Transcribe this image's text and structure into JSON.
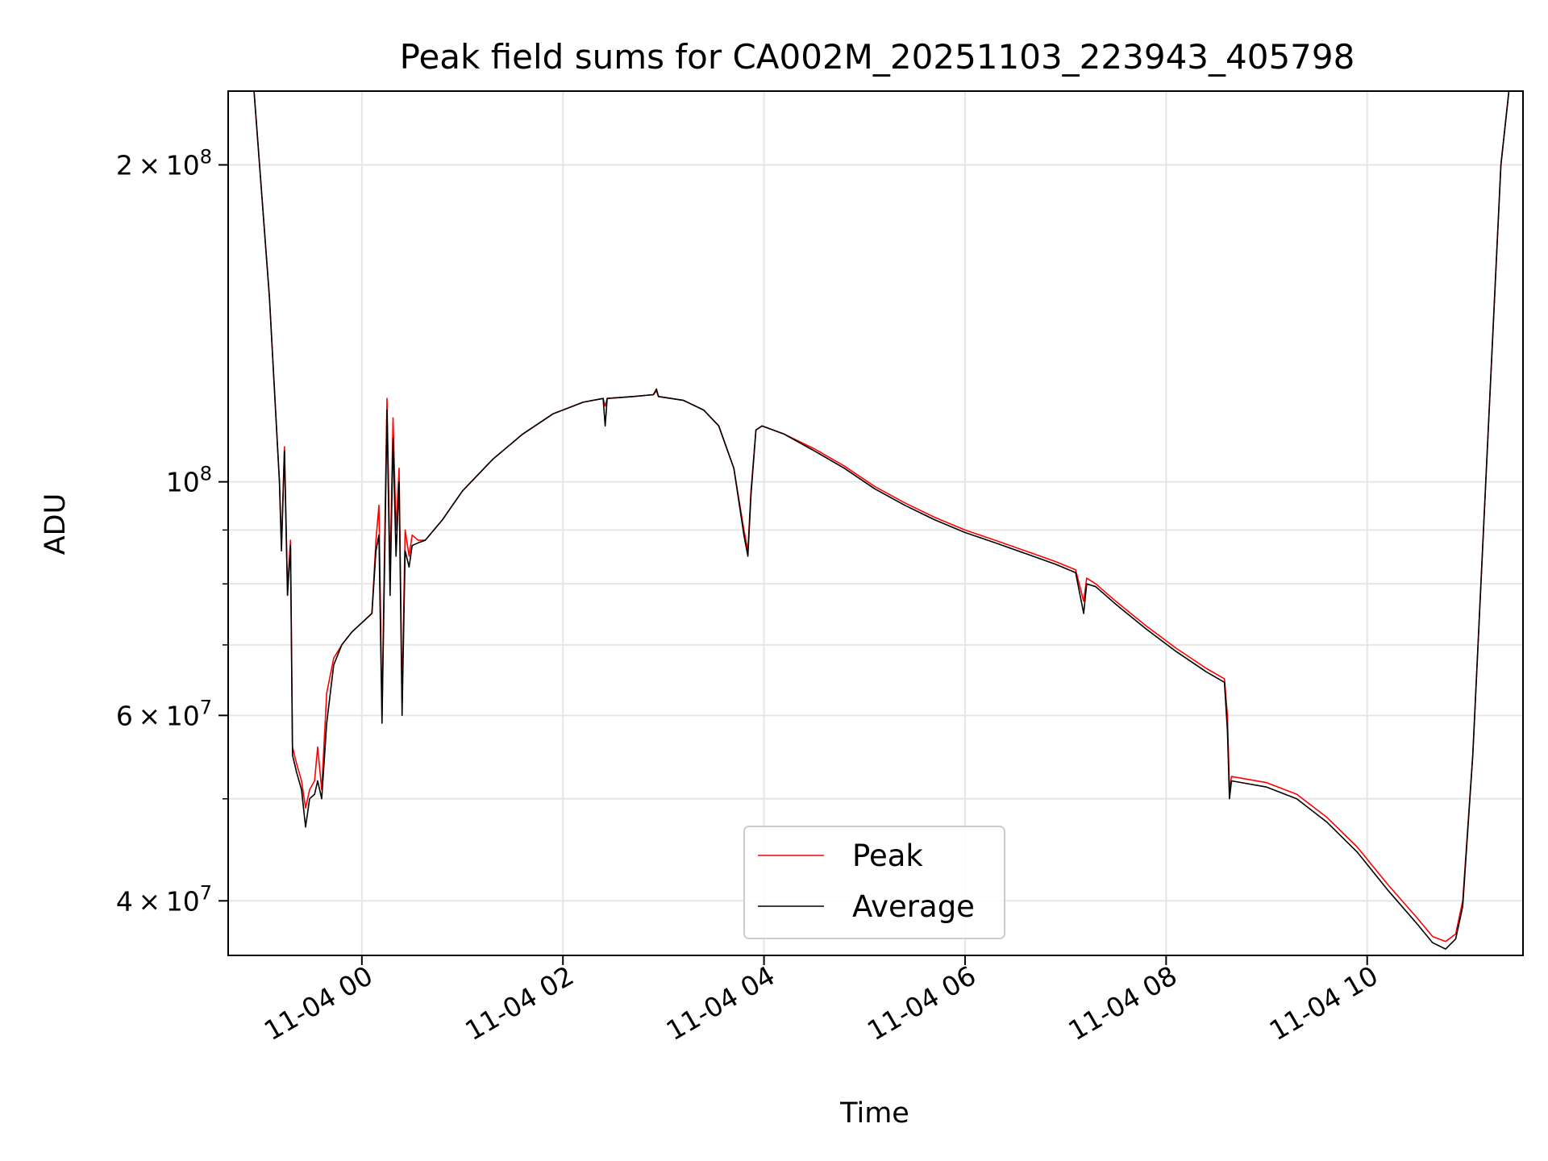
{
  "chart_data": {
    "type": "line",
    "title": "Peak field sums for CA002M_20251103_223943_405798",
    "xlabel": "Time",
    "ylabel": "ADU",
    "xlim_hours": [
      -1.33,
      11.55
    ],
    "ylim": [
      35500000,
      235000000
    ],
    "yscale": "log",
    "grid": true,
    "legend_position": "lower-center",
    "x_ticks": [
      {
        "hour": 0,
        "label": "11-04 00"
      },
      {
        "hour": 2,
        "label": "11-04 02"
      },
      {
        "hour": 4,
        "label": "11-04 04"
      },
      {
        "hour": 6,
        "label": "11-04 06"
      },
      {
        "hour": 8,
        "label": "11-04 08"
      },
      {
        "hour": 10,
        "label": "11-04 10"
      }
    ],
    "y_major_ticks": [
      {
        "value": 40000000,
        "mantissa": "4",
        "exponent": "7"
      },
      {
        "value": 60000000,
        "mantissa": "6",
        "exponent": "7"
      },
      {
        "value": 100000000,
        "mantissa": "",
        "exponent": "8"
      },
      {
        "value": 200000000,
        "mantissa": "2",
        "exponent": "8"
      }
    ],
    "y_minor_grid": [
      50000000,
      70000000,
      80000000,
      90000000
    ],
    "tick_prefix_base": "10",
    "tick_times": "×",
    "series": [
      {
        "name": "Peak",
        "color": "#ff0000",
        "points": [
          [
            -1.33,
            240000000
          ],
          [
            -1.08,
            240000000
          ],
          [
            -0.92,
            150000000
          ],
          [
            -0.82,
            100000000
          ],
          [
            -0.8,
            87000000
          ],
          [
            -0.77,
            108000000
          ],
          [
            -0.74,
            79000000
          ],
          [
            -0.71,
            88000000
          ],
          [
            -0.69,
            56000000
          ],
          [
            -0.65,
            54000000
          ],
          [
            -0.6,
            52000000
          ],
          [
            -0.56,
            49000000
          ],
          [
            -0.52,
            51000000
          ],
          [
            -0.47,
            52000000
          ],
          [
            -0.44,
            56000000
          ],
          [
            -0.4,
            51000000
          ],
          [
            -0.35,
            63000000
          ],
          [
            -0.28,
            68000000
          ],
          [
            -0.2,
            70000000
          ],
          [
            -0.1,
            72000000
          ],
          [
            0.1,
            75000000
          ],
          [
            0.14,
            88000000
          ],
          [
            0.17,
            95000000
          ],
          [
            0.2,
            60000000
          ],
          [
            0.23,
            92000000
          ],
          [
            0.25,
            120000000
          ],
          [
            0.28,
            82000000
          ],
          [
            0.31,
            115000000
          ],
          [
            0.34,
            90000000
          ],
          [
            0.37,
            103000000
          ],
          [
            0.4,
            62000000
          ],
          [
            0.43,
            90000000
          ],
          [
            0.47,
            85000000
          ],
          [
            0.5,
            89000000
          ],
          [
            0.56,
            88000000
          ],
          [
            0.63,
            88000000
          ],
          [
            0.8,
            92000000
          ],
          [
            1.0,
            98000000
          ],
          [
            1.3,
            105000000
          ],
          [
            1.6,
            111000000
          ],
          [
            1.9,
            116000000
          ],
          [
            2.2,
            119000000
          ],
          [
            2.4,
            120000000
          ],
          [
            2.42,
            118000000
          ],
          [
            2.44,
            120000000
          ],
          [
            2.7,
            120500000
          ],
          [
            2.9,
            121000000
          ],
          [
            2.93,
            122000000
          ],
          [
            2.95,
            120500000
          ],
          [
            3.2,
            119500000
          ],
          [
            3.4,
            117000000
          ],
          [
            3.55,
            113000000
          ],
          [
            3.7,
            103000000
          ],
          [
            3.8,
            90000000
          ],
          [
            3.84,
            86000000
          ],
          [
            3.87,
            98000000
          ],
          [
            3.92,
            112000000
          ],
          [
            3.98,
            113000000
          ],
          [
            4.2,
            111000000
          ],
          [
            4.5,
            107500000
          ],
          [
            4.8,
            103500000
          ],
          [
            5.1,
            99000000
          ],
          [
            5.4,
            95500000
          ],
          [
            5.7,
            92500000
          ],
          [
            6.0,
            90000000
          ],
          [
            6.3,
            88000000
          ],
          [
            6.6,
            86000000
          ],
          [
            6.9,
            84000000
          ],
          [
            7.1,
            82500000
          ],
          [
            7.18,
            77000000
          ],
          [
            7.21,
            81000000
          ],
          [
            7.3,
            80000000
          ],
          [
            7.5,
            77000000
          ],
          [
            7.8,
            73000000
          ],
          [
            8.1,
            69500000
          ],
          [
            8.4,
            66500000
          ],
          [
            8.58,
            65000000
          ],
          [
            8.61,
            60000000
          ],
          [
            8.63,
            51000000
          ],
          [
            8.65,
            52500000
          ],
          [
            9.0,
            51800000
          ],
          [
            9.3,
            50500000
          ],
          [
            9.6,
            48000000
          ],
          [
            9.9,
            45000000
          ],
          [
            10.2,
            41500000
          ],
          [
            10.5,
            38500000
          ],
          [
            10.65,
            37000000
          ],
          [
            10.78,
            36600000
          ],
          [
            10.88,
            37200000
          ],
          [
            10.95,
            40000000
          ],
          [
            11.05,
            55000000
          ],
          [
            11.2,
            110000000
          ],
          [
            11.33,
            200000000
          ],
          [
            11.42,
            240000000
          ],
          [
            11.55,
            240000000
          ]
        ]
      },
      {
        "name": "Average",
        "color": "#000000",
        "points": [
          [
            -1.33,
            240000000
          ],
          [
            -1.08,
            240000000
          ],
          [
            -0.92,
            150000000
          ],
          [
            -0.82,
            100000000
          ],
          [
            -0.8,
            86000000
          ],
          [
            -0.77,
            107000000
          ],
          [
            -0.74,
            78000000
          ],
          [
            -0.71,
            87000000
          ],
          [
            -0.69,
            55000000
          ],
          [
            -0.65,
            53000000
          ],
          [
            -0.6,
            51000000
          ],
          [
            -0.56,
            47000000
          ],
          [
            -0.52,
            50000000
          ],
          [
            -0.47,
            50500000
          ],
          [
            -0.44,
            52000000
          ],
          [
            -0.4,
            50000000
          ],
          [
            -0.35,
            59000000
          ],
          [
            -0.28,
            67000000
          ],
          [
            -0.2,
            70000000
          ],
          [
            -0.1,
            72000000
          ],
          [
            0.1,
            75000000
          ],
          [
            0.14,
            86000000
          ],
          [
            0.17,
            89000000
          ],
          [
            0.2,
            59000000
          ],
          [
            0.23,
            88000000
          ],
          [
            0.25,
            117000000
          ],
          [
            0.28,
            78000000
          ],
          [
            0.31,
            110000000
          ],
          [
            0.34,
            85000000
          ],
          [
            0.37,
            100000000
          ],
          [
            0.4,
            60000000
          ],
          [
            0.43,
            86000000
          ],
          [
            0.47,
            83000000
          ],
          [
            0.5,
            87000000
          ],
          [
            0.56,
            87500000
          ],
          [
            0.63,
            88000000
          ],
          [
            0.8,
            92000000
          ],
          [
            1.0,
            98000000
          ],
          [
            1.3,
            105000000
          ],
          [
            1.6,
            111000000
          ],
          [
            1.9,
            116000000
          ],
          [
            2.2,
            119000000
          ],
          [
            2.4,
            120000000
          ],
          [
            2.42,
            113000000
          ],
          [
            2.44,
            120000000
          ],
          [
            2.7,
            120500000
          ],
          [
            2.9,
            121000000
          ],
          [
            2.93,
            122500000
          ],
          [
            2.95,
            120500000
          ],
          [
            3.2,
            119500000
          ],
          [
            3.4,
            117000000
          ],
          [
            3.55,
            113000000
          ],
          [
            3.7,
            103000000
          ],
          [
            3.8,
            89000000
          ],
          [
            3.84,
            85000000
          ],
          [
            3.87,
            97000000
          ],
          [
            3.92,
            112000000
          ],
          [
            3.98,
            113000000
          ],
          [
            4.2,
            111000000
          ],
          [
            4.5,
            107000000
          ],
          [
            4.8,
            103000000
          ],
          [
            5.1,
            98500000
          ],
          [
            5.4,
            95000000
          ],
          [
            5.7,
            92000000
          ],
          [
            6.0,
            89500000
          ],
          [
            6.3,
            87500000
          ],
          [
            6.6,
            85500000
          ],
          [
            6.9,
            83500000
          ],
          [
            7.1,
            82000000
          ],
          [
            7.18,
            75000000
          ],
          [
            7.21,
            80000000
          ],
          [
            7.3,
            79500000
          ],
          [
            7.5,
            76500000
          ],
          [
            7.8,
            72500000
          ],
          [
            8.1,
            69000000
          ],
          [
            8.4,
            66000000
          ],
          [
            8.58,
            64500000
          ],
          [
            8.61,
            58000000
          ],
          [
            8.63,
            50000000
          ],
          [
            8.65,
            52000000
          ],
          [
            9.0,
            51300000
          ],
          [
            9.3,
            50000000
          ],
          [
            9.6,
            47500000
          ],
          [
            9.9,
            44500000
          ],
          [
            10.2,
            41000000
          ],
          [
            10.5,
            38000000
          ],
          [
            10.65,
            36500000
          ],
          [
            10.78,
            36000000
          ],
          [
            10.88,
            36800000
          ],
          [
            10.95,
            39500000
          ],
          [
            11.05,
            55000000
          ],
          [
            11.2,
            110000000
          ],
          [
            11.33,
            200000000
          ],
          [
            11.42,
            240000000
          ],
          [
            11.55,
            240000000
          ]
        ]
      }
    ]
  }
}
